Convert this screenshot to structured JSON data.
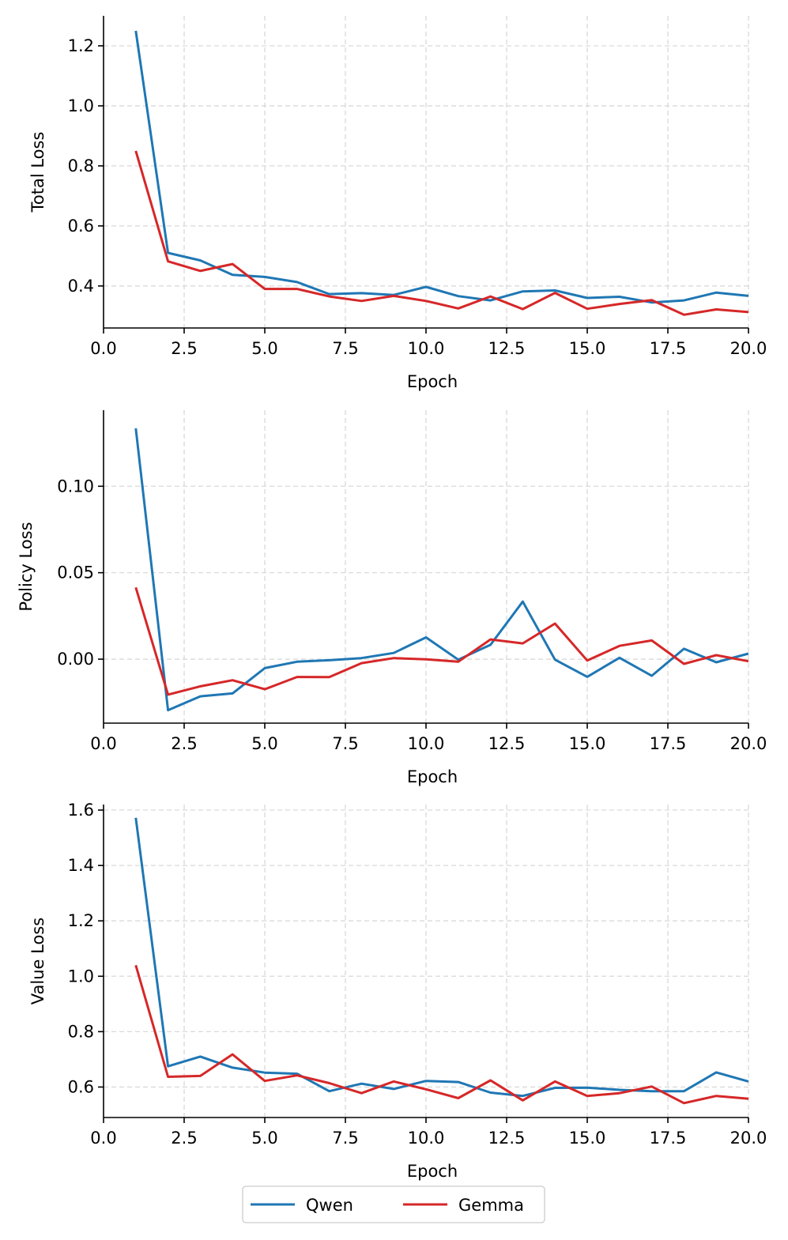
{
  "colors": {
    "Qwen": "#1f77b4",
    "Gemma": "#d62728",
    "grid": "#d9d9d9"
  },
  "legend": {
    "position": "bottom-center",
    "items": [
      {
        "name": "Qwen",
        "color": "#1f77b4"
      },
      {
        "name": "Gemma",
        "color": "#d62728"
      }
    ]
  },
  "chart_data": [
    {
      "type": "line",
      "xlabel": "Epoch",
      "ylabel": "Total Loss",
      "xlim": [
        0,
        20
      ],
      "ylim": [
        0.26,
        1.3
      ],
      "xticks": [
        0,
        2.5,
        5,
        7.5,
        10,
        12.5,
        15,
        17.5,
        20
      ],
      "xtick_labels": [
        "0.0",
        "2.5",
        "5.0",
        "7.5",
        "10.0",
        "12.5",
        "15.0",
        "17.5",
        "20.0"
      ],
      "yticks": [
        0.4,
        0.6,
        0.8,
        1.0,
        1.2
      ],
      "ytick_labels": [
        "0.4",
        "0.6",
        "0.8",
        "1.0",
        "1.2"
      ],
      "grid": true,
      "x": [
        1,
        2,
        3,
        4,
        5,
        6,
        7,
        8,
        9,
        10,
        11,
        12,
        13,
        14,
        15,
        16,
        17,
        18,
        19,
        20
      ],
      "series": [
        {
          "name": "Qwen",
          "values": [
            1.25,
            0.51,
            0.485,
            0.437,
            0.43,
            0.413,
            0.373,
            0.376,
            0.37,
            0.397,
            0.366,
            0.352,
            0.382,
            0.385,
            0.36,
            0.364,
            0.345,
            0.352,
            0.378,
            0.367
          ]
        },
        {
          "name": "Gemma",
          "values": [
            0.85,
            0.482,
            0.45,
            0.473,
            0.39,
            0.39,
            0.365,
            0.35,
            0.367,
            0.35,
            0.325,
            0.365,
            0.323,
            0.377,
            0.324,
            0.34,
            0.353,
            0.304,
            0.322,
            0.313
          ]
        }
      ]
    },
    {
      "type": "line",
      "xlabel": "Epoch",
      "ylabel": "Policy Loss",
      "xlim": [
        0,
        20
      ],
      "ylim": [
        -0.037,
        0.144
      ],
      "xticks": [
        0,
        2.5,
        5,
        7.5,
        10,
        12.5,
        15,
        17.5,
        20
      ],
      "xtick_labels": [
        "0.0",
        "2.5",
        "5.0",
        "7.5",
        "10.0",
        "12.5",
        "15.0",
        "17.5",
        "20.0"
      ],
      "yticks": [
        0.0,
        0.05,
        0.1
      ],
      "ytick_labels": [
        "0.00",
        "0.05",
        "0.10"
      ],
      "grid": true,
      "x": [
        1,
        2,
        3,
        4,
        5,
        6,
        7,
        8,
        9,
        10,
        11,
        12,
        13,
        14,
        15,
        16,
        17,
        18,
        19,
        20
      ],
      "series": [
        {
          "name": "Qwen",
          "values": [
            0.1335,
            -0.0295,
            -0.0215,
            -0.0198,
            -0.0052,
            -0.0015,
            -0.0006,
            0.0006,
            0.0036,
            0.0126,
            -0.0003,
            0.0083,
            0.0333,
            -0.0003,
            -0.0102,
            0.0008,
            -0.0096,
            0.006,
            -0.0018,
            0.0032
          ]
        },
        {
          "name": "Gemma",
          "values": [
            0.0415,
            -0.0205,
            -0.0157,
            -0.0122,
            -0.0174,
            -0.0103,
            -0.0104,
            -0.0023,
            0.0006,
            -0.0001,
            -0.0015,
            0.0114,
            0.0091,
            0.0206,
            -0.0008,
            0.0077,
            0.0108,
            -0.0027,
            0.0023,
            -0.0012
          ]
        }
      ]
    },
    {
      "type": "line",
      "xlabel": "Epoch",
      "ylabel": "Value Loss",
      "xlim": [
        0,
        20
      ],
      "ylim": [
        0.49,
        1.62
      ],
      "xticks": [
        0,
        2.5,
        5,
        7.5,
        10,
        12.5,
        15,
        17.5,
        20
      ],
      "xtick_labels": [
        "0.0",
        "2.5",
        "5.0",
        "7.5",
        "10.0",
        "12.5",
        "15.0",
        "17.5",
        "20.0"
      ],
      "yticks": [
        0.6,
        0.8,
        1.0,
        1.2,
        1.4,
        1.6
      ],
      "ytick_labels": [
        "0.6",
        "0.8",
        "1.0",
        "1.2",
        "1.4",
        "1.6"
      ],
      "grid": true,
      "x": [
        1,
        2,
        3,
        4,
        5,
        6,
        7,
        8,
        9,
        10,
        11,
        12,
        13,
        14,
        15,
        16,
        17,
        18,
        19,
        20
      ],
      "series": [
        {
          "name": "Qwen",
          "values": [
            1.572,
            0.675,
            0.71,
            0.67,
            0.652,
            0.648,
            0.585,
            0.612,
            0.593,
            0.622,
            0.618,
            0.58,
            0.568,
            0.597,
            0.598,
            0.59,
            0.585,
            0.585,
            0.653,
            0.62
          ]
        },
        {
          "name": "Gemma",
          "values": [
            1.04,
            0.637,
            0.64,
            0.718,
            0.622,
            0.642,
            0.614,
            0.578,
            0.62,
            0.592,
            0.56,
            0.624,
            0.552,
            0.62,
            0.568,
            0.578,
            0.602,
            0.542,
            0.568,
            0.558
          ]
        }
      ]
    }
  ]
}
